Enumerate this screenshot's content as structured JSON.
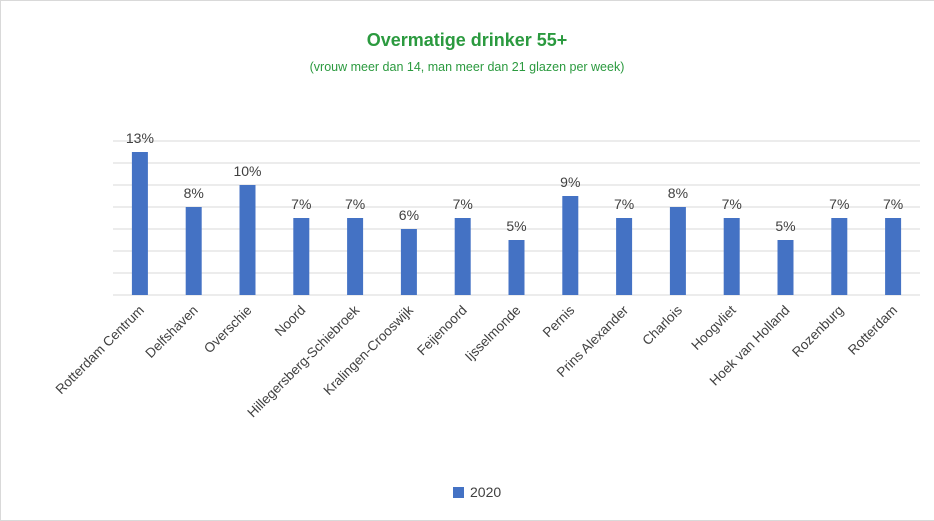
{
  "chart_data": {
    "type": "bar",
    "title": "Overmatige drinker 55+",
    "subtitle": "(vrouw meer dan 14, man meer dan 21 glazen per week)",
    "categories": [
      "Rotterdam Centrum",
      "Delfshaven",
      "Overschie",
      "Noord",
      "Hillegersberg-Schiebroek",
      "Kralingen-Crooswijk",
      "Feijenoord",
      "Ijsselmonde",
      "Pernis",
      "Prins Alexander",
      "Charlois",
      "Hoogvliet",
      "Hoek van Holland",
      "Rozenburg",
      "Rotterdam"
    ],
    "series": [
      {
        "name": "2020",
        "values": [
          13,
          8,
          10,
          7,
          7,
          6,
          7,
          5,
          9,
          7,
          8,
          7,
          5,
          7,
          7
        ],
        "labels": [
          "13%",
          "8%",
          "10%",
          "7%",
          "7%",
          "6%",
          "7%",
          "5%",
          "9%",
          "7%",
          "8%",
          "7%",
          "5%",
          "7%",
          "7%"
        ],
        "color": "#4472c4"
      }
    ],
    "ylim": [
      0,
      14
    ],
    "ytick_step": 2,
    "grid": true,
    "legend_position": "bottom",
    "colors": {
      "title": "#2b9a3f",
      "gridline": "#d9d9d9",
      "text": "#404040"
    }
  }
}
